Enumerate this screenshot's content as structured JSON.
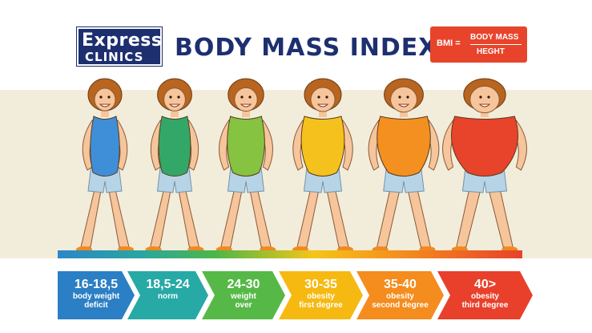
{
  "logo": {
    "line1": "Express",
    "line2": "CLINICS"
  },
  "title": "BODY MASS INDEX",
  "formula": {
    "left": "BMI =",
    "numerator": "BODY MASS",
    "denominator": "HEGHT"
  },
  "colors": {
    "navy": "#1d2f6f",
    "formula_bg": "#e8442c",
    "skin": "#f6c59c",
    "hair": "#b8651f",
    "shorts": "#b7d4e6"
  },
  "categories": [
    {
      "range": "16-18,5",
      "desc": [
        "body weight",
        "deficit"
      ],
      "color": "#2b7fc4",
      "suit": "#3f8fd8",
      "size": 1.0
    },
    {
      "range": "18,5-24",
      "desc": [
        "norm"
      ],
      "color": "#27a9a6",
      "suit": "#33a768",
      "size": 1.1
    },
    {
      "range": "24-30",
      "desc": [
        "weight",
        "over"
      ],
      "color": "#56b947",
      "suit": "#86c340",
      "size": 1.3
    },
    {
      "range": "30-35",
      "desc": [
        "obesity",
        "first degree"
      ],
      "color": "#f6b912",
      "suit": "#f5c21d",
      "size": 1.5
    },
    {
      "range": "35-40",
      "desc": [
        "obesity",
        "second degree"
      ],
      "color": "#f48c1e",
      "suit": "#f4901f",
      "size": 1.85
    },
    {
      "range": "40>",
      "desc": [
        "obesity",
        "third degree"
      ],
      "color": "#e8402b",
      "suit": "#e8432b",
      "size": 2.3
    }
  ]
}
